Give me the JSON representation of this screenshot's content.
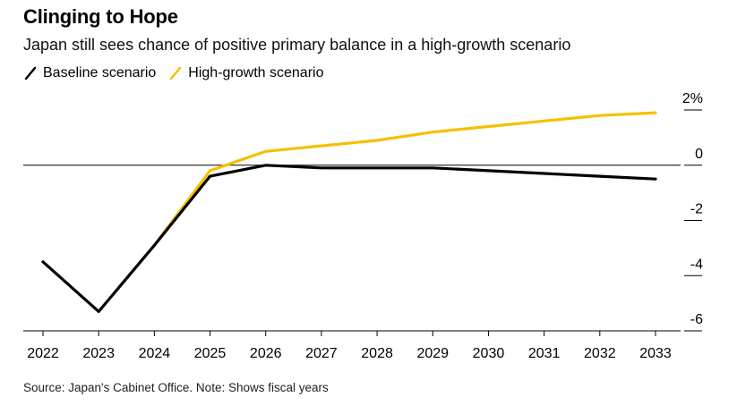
{
  "header": {
    "title": "Clinging to Hope",
    "subtitle": "Japan still sees chance of positive primary balance in a high-growth scenario"
  },
  "legend": [
    {
      "label": "Baseline scenario",
      "color": "#000000"
    },
    {
      "label": "High-growth scenario",
      "color": "#F5C000"
    }
  ],
  "footer": {
    "source": "Source: Japan's Cabinet Office. Note: Shows fiscal years"
  },
  "chart_data": {
    "type": "line",
    "x": [
      "2022",
      "2023",
      "2024",
      "2025",
      "2026",
      "2027",
      "2028",
      "2029",
      "2030",
      "2031",
      "2032",
      "2033"
    ],
    "series": [
      {
        "name": "Baseline scenario",
        "color": "#000000",
        "values": [
          -3.5,
          -5.3,
          -2.9,
          -0.4,
          0.0,
          -0.1,
          -0.1,
          -0.1,
          -0.2,
          -0.3,
          -0.4,
          -0.5
        ]
      },
      {
        "name": "High-growth scenario",
        "color": "#F5C000",
        "values": [
          null,
          null,
          -2.9,
          -0.2,
          0.5,
          0.7,
          0.9,
          1.2,
          1.4,
          1.6,
          1.8,
          1.9
        ]
      }
    ],
    "ylim": [
      -6,
      2
    ],
    "yticks": [
      2,
      0,
      -2,
      -4,
      -6
    ],
    "ytick_labels": [
      "2%",
      "0",
      "-2",
      "-4",
      "-6"
    ],
    "zero_line": true
  }
}
